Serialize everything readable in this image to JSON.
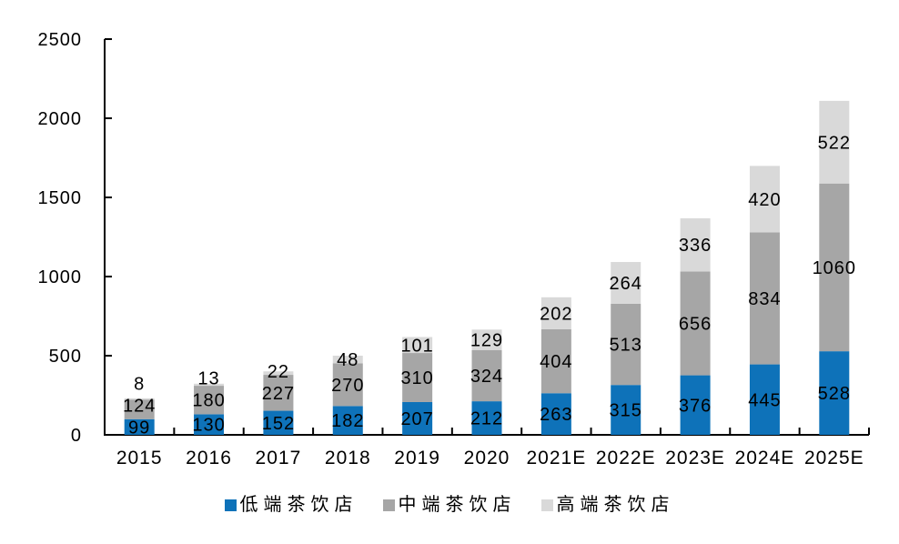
{
  "chart_data": {
    "type": "bar",
    "stacked": true,
    "title": "",
    "categories": [
      "2015",
      "2016",
      "2017",
      "2018",
      "2019",
      "2020",
      "2021E",
      "2022E",
      "2023E",
      "2024E",
      "2025E"
    ],
    "series": [
      {
        "name": "低端茶饮店",
        "color": "#0E72B9",
        "values": [
          99,
          130,
          152,
          182,
          207,
          212,
          263,
          315,
          376,
          445,
          528
        ]
      },
      {
        "name": "中端茶饮店",
        "color": "#A6A6A6",
        "values": [
          124,
          180,
          227,
          270,
          310,
          324,
          404,
          513,
          656,
          834,
          1060
        ]
      },
      {
        "name": "高端茶饮店",
        "color": "#D9D9D9",
        "values": [
          8,
          13,
          22,
          48,
          101,
          129,
          202,
          264,
          336,
          420,
          522
        ]
      }
    ],
    "y_axis": {
      "min": 0,
      "max": 2500,
      "tick_interval": 500,
      "tick_labels": [
        "0",
        "500",
        "1000",
        "1500",
        "2000",
        "2500"
      ]
    },
    "data_labels": true,
    "grid": false,
    "legend_position": "bottom",
    "axis_color": "#000000",
    "text_color": "#000000",
    "background_color": "#FFFFFF"
  }
}
